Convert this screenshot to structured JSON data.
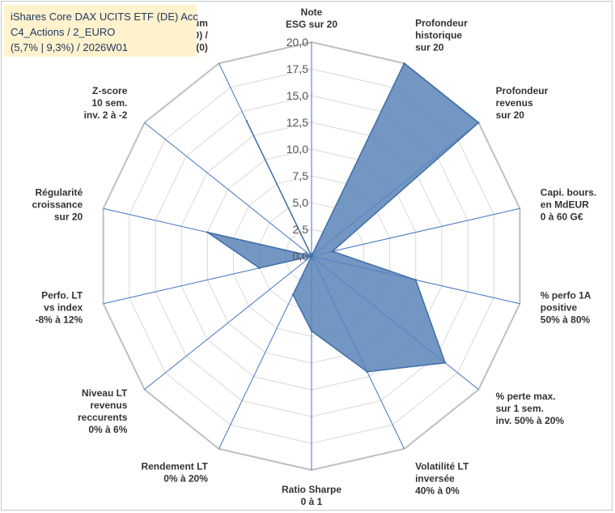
{
  "title": {
    "line1": "iShares Core DAX UCITS ETF (DE) Acc",
    "line2": "C4_Actions / 2_EURO",
    "line3": "(5,7% | 9,3%) / 2026W01"
  },
  "colors": {
    "fill": "#5b84b8",
    "stroke": "#3f6ea8",
    "grid": "#d9d9d9",
    "spoke": "#4472c4",
    "title_bg": "#fff2cc",
    "title_text": "#1f3864"
  },
  "chart_data": {
    "type": "radar",
    "rmin": 0,
    "rmax": 20,
    "tick_step": 2.5,
    "tick_labels": [
      "0,0",
      "2,5",
      "5,0",
      "7,5",
      "10,0",
      "12,5",
      "15,0",
      "17,5",
      "20,0"
    ],
    "grid": true,
    "categories": [
      [
        "Note",
        "ESG sur 20"
      ],
      [
        "Profondeur",
        "historique",
        "sur 20"
      ],
      [
        "Profondeur",
        "revenus",
        "sur 20"
      ],
      [
        "Capi. bours.",
        "en MdEUR",
        "0 à 60 G€"
      ],
      [
        "% perfo 1A",
        "positive",
        "50% à 80%"
      ],
      [
        "% perte max.",
        "sur 1 sem.",
        "inv. 50% à 20%"
      ],
      [
        "Volatilité LT",
        "inversée",
        "40% à 0%"
      ],
      [
        "Ratio Sharpe",
        "0 à 1"
      ],
      [
        "Rendement LT",
        "0% à 20%"
      ],
      [
        "Niveau LT",
        "revenus",
        "reccurents",
        "0% à 6%"
      ],
      [
        "Perfo. LT",
        "vs index",
        "-8% à 12%"
      ],
      [
        "Régularité",
        "croissance",
        "sur 20"
      ],
      [
        "Z-score",
        "10 sem.",
        "inv. 2 à -2"
      ],
      [
        "Momentum",
        "Achat (20) /",
        "Vente (0)"
      ]
    ],
    "series": [
      {
        "values": [
          0,
          20,
          20,
          2,
          10,
          16,
          12,
          7,
          4,
          0,
          5,
          10,
          0,
          14
        ]
      }
    ]
  }
}
